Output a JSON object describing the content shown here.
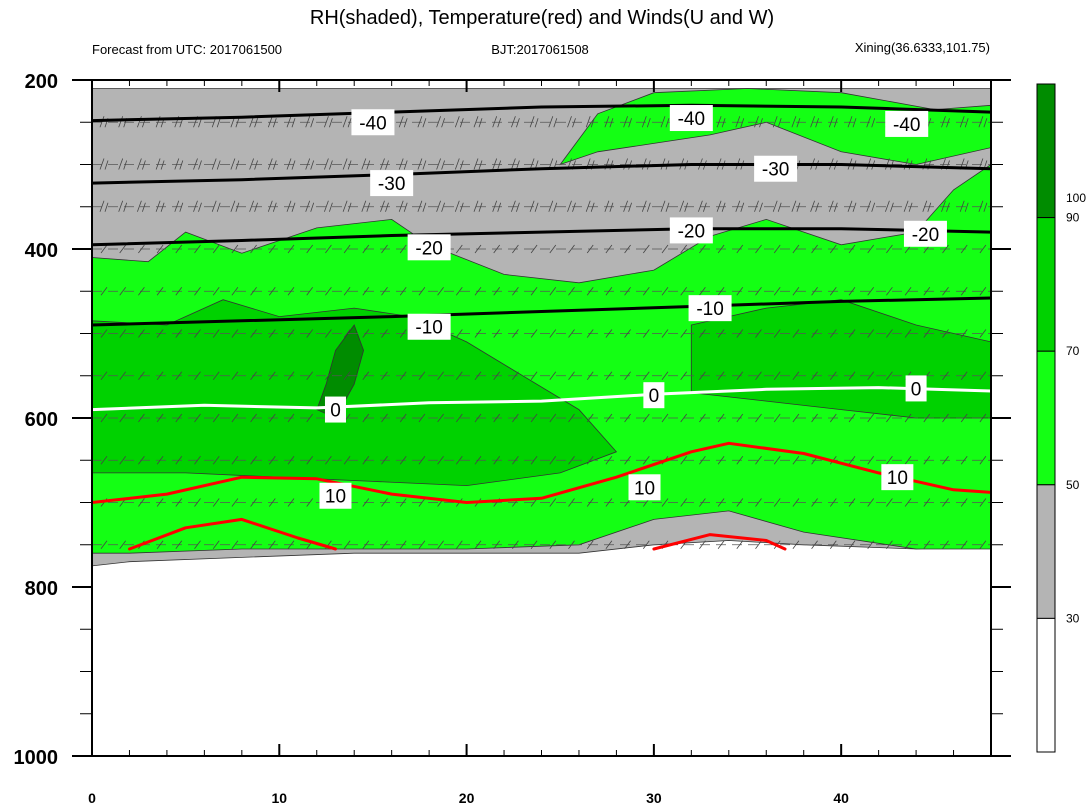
{
  "title": "RH(shaded), Temperature(red) and Winds(U and W)",
  "subtitle_left": "Forecast from UTC: 2017061500",
  "subtitle_center": "BJT:2017061508",
  "subtitle_right": "Xining(36.6333,101.75)",
  "colors": {
    "rh_lt30": "#ffffff",
    "rh_30_50": "#b4b4b4",
    "rh_50_70": "#14ff14",
    "rh_70_90": "#00d200",
    "rh_gt90": "#008c00",
    "temperature_line": "#ff0000",
    "zero_isotherm": "#ffffff",
    "cold_isotherm": "#000000"
  },
  "chart_data": {
    "type": "heatmap",
    "title": "RH(shaded), Temperature(red) and Winds(U and W)",
    "xlim": [
      0,
      48
    ],
    "ylim": [
      1000,
      200
    ],
    "x_ticks": [
      "0",
      "10",
      "20",
      "30",
      "40"
    ],
    "x_tick_values": [
      0,
      10,
      20,
      30,
      40
    ],
    "y_ticks": [
      "200",
      "400",
      "600",
      "800",
      "1000"
    ],
    "y_tick_values": [
      200,
      400,
      600,
      800,
      1000
    ],
    "colorbar": {
      "levels": [
        30,
        50,
        70,
        90
      ],
      "labels": [
        "30",
        "50",
        "70",
        "90",
        "100"
      ],
      "label_values": [
        30,
        50,
        70,
        90,
        100
      ],
      "colors": [
        "#ffffff",
        "#b4b4b4",
        "#14ff14",
        "#00d200",
        "#008c00"
      ]
    },
    "surface_pressure": 760,
    "rh_regions": [
      {
        "level": "30-50",
        "points": [
          [
            0,
            210
          ],
          [
            0,
            775
          ],
          [
            2,
            770
          ],
          [
            8,
            765
          ],
          [
            14,
            760
          ],
          [
            20,
            760
          ],
          [
            26,
            760
          ],
          [
            30,
            750
          ],
          [
            34,
            745
          ],
          [
            38,
            750
          ],
          [
            44,
            755
          ],
          [
            48,
            750
          ],
          [
            48,
            210
          ]
        ]
      },
      {
        "level": "50-70",
        "points": [
          [
            0,
            410
          ],
          [
            3,
            415
          ],
          [
            5,
            380
          ],
          [
            8,
            405
          ],
          [
            12,
            375
          ],
          [
            16,
            365
          ],
          [
            18,
            395
          ],
          [
            22,
            430
          ],
          [
            26,
            440
          ],
          [
            30,
            425
          ],
          [
            33,
            385
          ],
          [
            36,
            365
          ],
          [
            40,
            395
          ],
          [
            44,
            380
          ],
          [
            46,
            330
          ],
          [
            48,
            300
          ],
          [
            48,
            755
          ],
          [
            44,
            755
          ],
          [
            38,
            735
          ],
          [
            34,
            710
          ],
          [
            30,
            720
          ],
          [
            26,
            750
          ],
          [
            20,
            755
          ],
          [
            14,
            755
          ],
          [
            8,
            755
          ],
          [
            2,
            760
          ],
          [
            0,
            760
          ]
        ]
      },
      {
        "level": "50-70",
        "points": [
          [
            25,
            300
          ],
          [
            27,
            240
          ],
          [
            30,
            215
          ],
          [
            35,
            210
          ],
          [
            40,
            215
          ],
          [
            45,
            235
          ],
          [
            48,
            230
          ],
          [
            48,
            280
          ],
          [
            44,
            300
          ],
          [
            40,
            285
          ],
          [
            36,
            250
          ],
          [
            33,
            265
          ],
          [
            30,
            275
          ],
          [
            27,
            285
          ]
        ]
      },
      {
        "level": "70-90",
        "points": [
          [
            0,
            485
          ],
          [
            4,
            490
          ],
          [
            7,
            460
          ],
          [
            10,
            480
          ],
          [
            14,
            470
          ],
          [
            17,
            480
          ],
          [
            20,
            510
          ],
          [
            23,
            550
          ],
          [
            26,
            590
          ],
          [
            28,
            640
          ],
          [
            25,
            665
          ],
          [
            20,
            680
          ],
          [
            15,
            675
          ],
          [
            10,
            670
          ],
          [
            5,
            665
          ],
          [
            0,
            665
          ]
        ]
      },
      {
        "level": "70-90",
        "points": [
          [
            32,
            490
          ],
          [
            36,
            470
          ],
          [
            40,
            460
          ],
          [
            44,
            490
          ],
          [
            48,
            510
          ],
          [
            48,
            600
          ],
          [
            44,
            600
          ],
          [
            40,
            590
          ],
          [
            36,
            580
          ],
          [
            32,
            570
          ]
        ]
      },
      {
        "level": ">90",
        "points": [
          [
            12,
            590
          ],
          [
            12.5,
            560
          ],
          [
            13,
            520
          ],
          [
            14,
            490
          ],
          [
            14.5,
            520
          ],
          [
            14,
            560
          ],
          [
            13,
            600
          ]
        ]
      }
    ],
    "isotherms": [
      {
        "label": "-40",
        "color": "black",
        "values": [
          -40
        ],
        "points": [
          [
            0,
            248
          ],
          [
            8,
            244
          ],
          [
            16,
            238
          ],
          [
            24,
            232
          ],
          [
            32,
            230
          ],
          [
            40,
            232
          ],
          [
            48,
            238
          ]
        ]
      },
      {
        "label": "-30",
        "color": "black",
        "values": [
          -30
        ],
        "points": [
          [
            0,
            322
          ],
          [
            8,
            318
          ],
          [
            16,
            312
          ],
          [
            24,
            305
          ],
          [
            32,
            300
          ],
          [
            40,
            300
          ],
          [
            48,
            305
          ]
        ]
      },
      {
        "label": "-20",
        "color": "black",
        "values": [
          -20
        ],
        "points": [
          [
            0,
            395
          ],
          [
            8,
            390
          ],
          [
            16,
            384
          ],
          [
            24,
            380
          ],
          [
            32,
            376
          ],
          [
            40,
            376
          ],
          [
            48,
            380
          ]
        ]
      },
      {
        "label": "-10",
        "color": "black",
        "values": [
          -10
        ],
        "points": [
          [
            0,
            490
          ],
          [
            8,
            485
          ],
          [
            16,
            480
          ],
          [
            24,
            474
          ],
          [
            32,
            468
          ],
          [
            40,
            462
          ],
          [
            48,
            458
          ]
        ]
      },
      {
        "label": "0",
        "color": "white",
        "values": [
          0
        ],
        "points": [
          [
            0,
            590
          ],
          [
            6,
            585
          ],
          [
            12,
            588
          ],
          [
            18,
            582
          ],
          [
            24,
            580
          ],
          [
            30,
            572
          ],
          [
            36,
            566
          ],
          [
            42,
            564
          ],
          [
            48,
            568
          ]
        ]
      },
      {
        "label": "10",
        "color": "red",
        "values": [
          10
        ],
        "points": [
          [
            0,
            700
          ],
          [
            4,
            690
          ],
          [
            8,
            670
          ],
          [
            12,
            672
          ],
          [
            16,
            690
          ],
          [
            20,
            700
          ],
          [
            24,
            695
          ],
          [
            28,
            670
          ],
          [
            32,
            640
          ],
          [
            34,
            630
          ],
          [
            38,
            642
          ],
          [
            42,
            665
          ],
          [
            46,
            685
          ],
          [
            48,
            688
          ]
        ]
      },
      {
        "label": "",
        "color": "red",
        "values": [
          15
        ],
        "points": [
          [
            2,
            755
          ],
          [
            5,
            730
          ],
          [
            8,
            720
          ],
          [
            11,
            742
          ],
          [
            13,
            755
          ]
        ]
      },
      {
        "label": "",
        "color": "red",
        "values": [
          15
        ],
        "points": [
          [
            30,
            755
          ],
          [
            33,
            738
          ],
          [
            36,
            745
          ],
          [
            37,
            755
          ]
        ]
      }
    ],
    "contour_labels": [
      {
        "text": "-40",
        "x": 15,
        "y": 250
      },
      {
        "text": "-40",
        "x": 32,
        "y": 245
      },
      {
        "text": "-40",
        "x": 43.5,
        "y": 252
      },
      {
        "text": "-30",
        "x": 16,
        "y": 322
      },
      {
        "text": "-30",
        "x": 36.5,
        "y": 305
      },
      {
        "text": "-20",
        "x": 18,
        "y": 398
      },
      {
        "text": "-20",
        "x": 32,
        "y": 378
      },
      {
        "text": "-20",
        "x": 44.5,
        "y": 382
      },
      {
        "text": "-10",
        "x": 18,
        "y": 492
      },
      {
        "text": "-10",
        "x": 33,
        "y": 470
      },
      {
        "text": "0",
        "x": 13,
        "y": 590
      },
      {
        "text": "0",
        "x": 30,
        "y": 573
      },
      {
        "text": "0",
        "x": 44,
        "y": 565
      },
      {
        "text": "10",
        "x": 13,
        "y": 692
      },
      {
        "text": "10",
        "x": 29.5,
        "y": 682
      },
      {
        "text": "10",
        "x": 43,
        "y": 670
      }
    ],
    "wind_barb_levels": [
      250,
      300,
      350,
      400,
      450,
      500,
      550,
      600,
      650,
      700,
      750
    ]
  }
}
